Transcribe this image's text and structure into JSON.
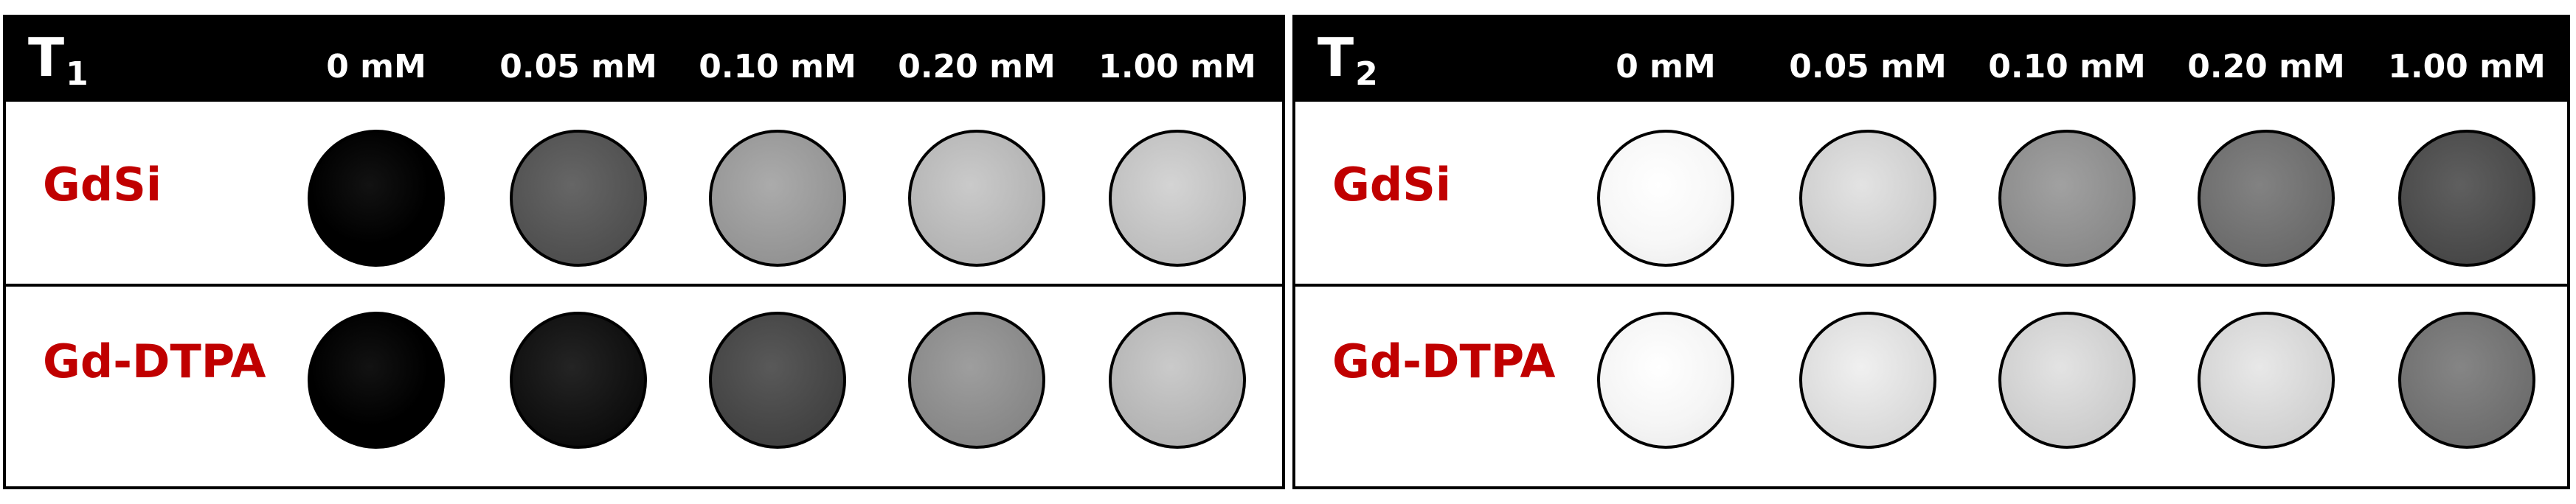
{
  "panels": [
    {
      "title": "T",
      "subscript": "1",
      "concentrations": [
        "0 mM",
        "0.05 mM",
        "0.10 mM",
        "0.20 mM",
        "1.00 mM"
      ],
      "rows": [
        {
          "label": "GdSi",
          "intensities": [
            0.0,
            0.33,
            0.6,
            0.72,
            0.76
          ]
        },
        {
          "label": "Gd-DTPA",
          "intensities": [
            0.0,
            0.07,
            0.28,
            0.55,
            0.72
          ]
        }
      ]
    },
    {
      "title": "T",
      "subscript": "2",
      "concentrations": [
        "0 mM",
        "0.05 mM",
        "0.10 mM",
        "0.20 mM",
        "1.00 mM"
      ],
      "rows": [
        {
          "label": "GdSi",
          "intensities": [
            0.97,
            0.82,
            0.56,
            0.44,
            0.3
          ]
        },
        {
          "label": "Gd-DTPA",
          "intensities": [
            0.96,
            0.87,
            0.82,
            0.84,
            0.45
          ]
        }
      ]
    }
  ]
}
